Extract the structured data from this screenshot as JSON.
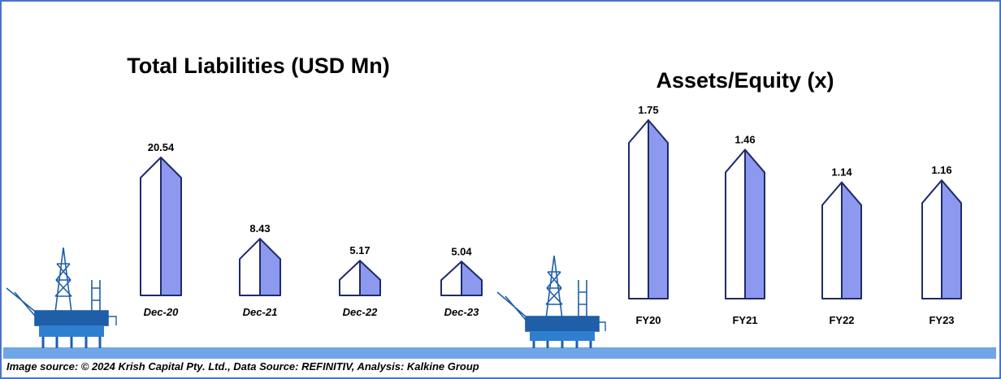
{
  "chart_data": [
    {
      "type": "bar",
      "title": "Total Liabilities (USD Mn)",
      "categories": [
        "Dec-20",
        "Dec-21",
        "Dec-22",
        "Dec-23"
      ],
      "values": [
        20.54,
        8.43,
        5.17,
        5.04
      ],
      "value_labels": [
        "20.54",
        "8.43",
        "5.17",
        "5.04"
      ],
      "ylim": [
        0,
        22
      ]
    },
    {
      "type": "bar",
      "title": "Assets/Equity (x)",
      "categories": [
        "FY20",
        "FY21",
        "FY22",
        "FY23"
      ],
      "values": [
        1.75,
        1.46,
        1.14,
        1.16
      ],
      "value_labels": [
        "1.75",
        "1.46",
        "1.14",
        "1.16"
      ],
      "ylim": [
        0,
        1.85
      ]
    }
  ],
  "footer": {
    "source": "Image source: © 2024 Krish Capital Pty. Ltd., Data Source: REFINITIV, Analysis: Kalkine Group"
  },
  "colors": {
    "bar_outline": "#1f2a6b",
    "bar_right_face": "#8c99ee",
    "bar_left_face": "#ffffff",
    "ground_strip": "#6fa6e8",
    "rig": "#1f5fa8",
    "border": "#4a74c9"
  },
  "decorations": [
    "oil-rig-icon",
    "oil-rig-icon"
  ]
}
